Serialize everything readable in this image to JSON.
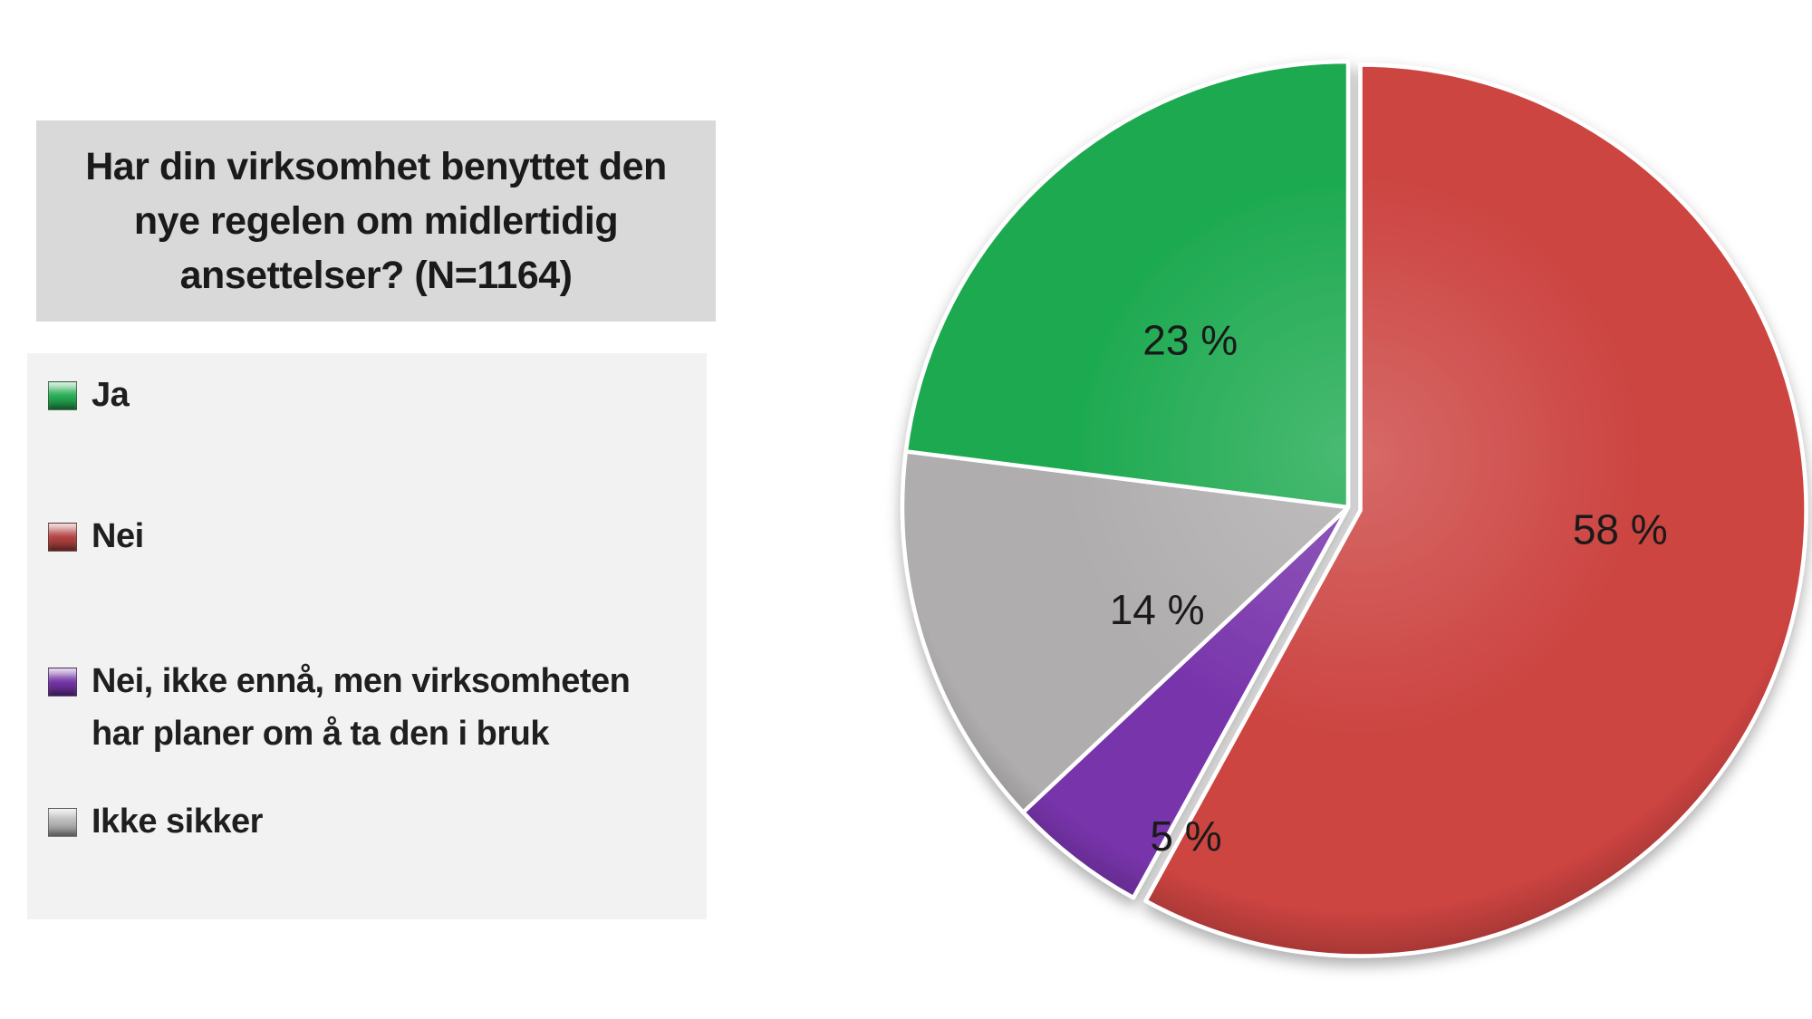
{
  "page": {
    "background_color": "#ffffff"
  },
  "title_box": {
    "text": "Har din virksomhet benyttet den nye regelen om midlertidig ansettelser? (N=1164)",
    "lines": [
      "Har din virksomhet benyttet den",
      "nye regelen om midlertidig",
      "ansettelser? (N=1164)"
    ],
    "background_color": "#d9d9d9",
    "text_color": "#1a1a1a"
  },
  "legend": {
    "background_color": "#f2f2f2",
    "text_color": "#1f1f1f",
    "items": [
      {
        "label": "Ja",
        "lines": [
          "Ja"
        ],
        "swatch_color": "#26ac52"
      },
      {
        "label": "Nei",
        "lines": [
          "Nei"
        ],
        "swatch_color": "#b24240"
      },
      {
        "label": "Nei, ikke ennå, men virksomheten har planer om å ta den i bruk",
        "lines": [
          "Nei, ikke ennå, men virksomheten",
          "har planer om å ta den i bruk"
        ],
        "swatch_color": "#7233a4"
      },
      {
        "label": "Ikke sikker",
        "lines": [
          "Ikke sikker"
        ],
        "swatch_color": "#b5b3b3"
      }
    ]
  },
  "chart_data": {
    "type": "pie",
    "title": "Har din virksomhet benyttet den nye regelen om midlertidig ansettelser? (N=1164)",
    "legend_position": "left",
    "start_angle_deg": 0,
    "direction": "clockwise",
    "total": 100,
    "data_label_color": "#1a1a1a",
    "slices": [
      {
        "label": "Nei",
        "value": 58,
        "display_label": "58 %",
        "color": "#cc4441",
        "exploded": true
      },
      {
        "label": "Nei, ikke ennå, men virksomheten har planer om å ta den i bruk",
        "value": 5,
        "display_label": "5 %",
        "color": "#7834ab",
        "exploded": false
      },
      {
        "label": "Ikke sikker",
        "value": 14,
        "display_label": "14 %",
        "color": "#afadad",
        "exploded": false
      },
      {
        "label": "Ja",
        "value": 23,
        "display_label": "23 %",
        "color": "#1ca94f",
        "exploded": false
      }
    ]
  }
}
